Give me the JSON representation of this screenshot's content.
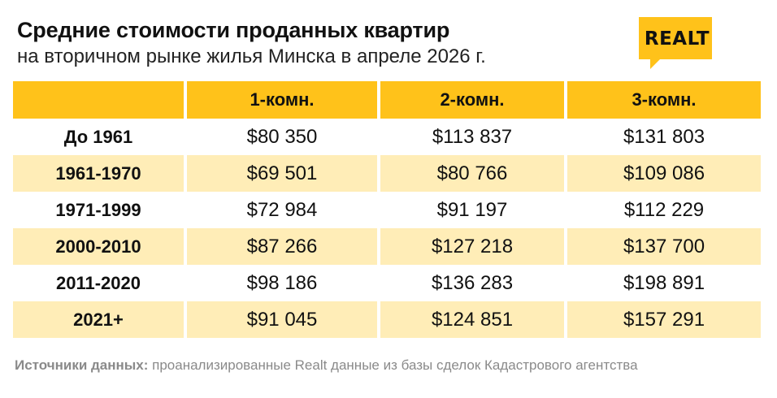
{
  "header": {
    "title": "Средние стоимости проданных квартир",
    "subtitle": "на вторичном рынке жилья Минска в апреле 2026 г."
  },
  "logo": {
    "text": "REALT",
    "color": "#ffc21a"
  },
  "colors": {
    "header_fill": "#ffc21a",
    "alt_row_fill": "#ffedb7"
  },
  "chart_data": {
    "type": "table",
    "columns": [
      "",
      "1-комн.",
      "2-комн.",
      "3-комн."
    ],
    "rows": [
      {
        "label": "До 1961",
        "values": [
          "$80 350",
          "$113 837",
          "$131 803"
        ]
      },
      {
        "label": "1961-1970",
        "values": [
          "$69 501",
          "$80 766",
          "$109 086"
        ]
      },
      {
        "label": "1971-1999",
        "values": [
          "$72 984",
          "$91 197",
          "$112 229"
        ]
      },
      {
        "label": "2000-2010",
        "values": [
          "$87 266",
          "$127 218",
          "$137 700"
        ]
      },
      {
        "label": "2011-2020",
        "values": [
          "$98 186",
          "$136 283",
          "$198 891"
        ]
      },
      {
        "label": "2021+",
        "values": [
          "$91 045",
          "$124 851",
          "$157 291"
        ]
      }
    ]
  },
  "footer": {
    "source_label": "Источники данных:",
    "source_text": " проанализированные Realt данные из базы сделок Кадастрового агентства"
  }
}
